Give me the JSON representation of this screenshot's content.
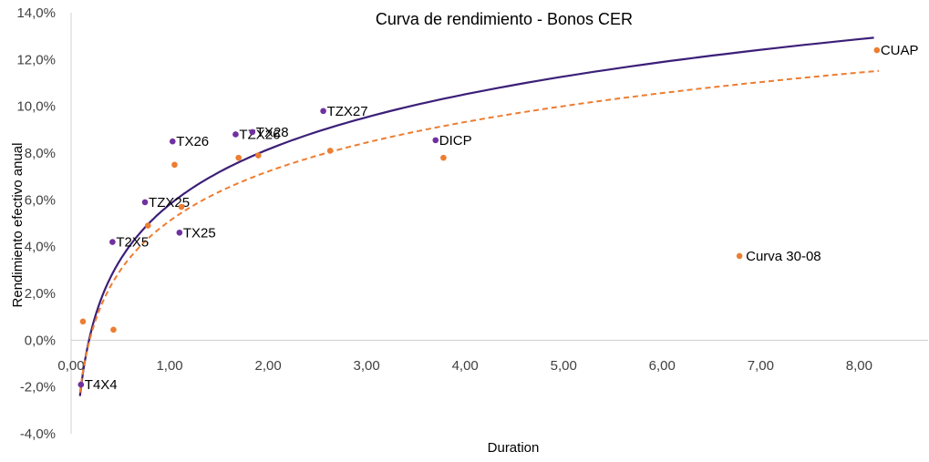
{
  "chart_data": {
    "type": "scatter",
    "title": "Curva de rendimiento - Bonos CER",
    "xlabel": "Duration",
    "ylabel": "Rendimiento efectivo anual",
    "xlim": [
      0,
      8.7
    ],
    "ylim": [
      -4,
      14
    ],
    "x_ticks": [
      "0,00",
      "1,00",
      "2,00",
      "3,00",
      "4,00",
      "5,00",
      "6,00",
      "7,00",
      "8,00"
    ],
    "y_ticks": [
      "-4,0%",
      "-2,0%",
      "0,0%",
      "2,0%",
      "4,0%",
      "6,0%",
      "8,0%",
      "10,0%",
      "12,0%",
      "14,0%"
    ],
    "grid": false,
    "series": [
      {
        "color": "#7030a0",
        "points": [
          {
            "x": 0.1,
            "y": -1.9,
            "label": "T4X4"
          },
          {
            "x": 0.42,
            "y": 4.2,
            "label": "T2X5"
          },
          {
            "x": 0.75,
            "y": 5.9,
            "label": "TZX25"
          },
          {
            "x": 1.03,
            "y": 8.5,
            "label": "TX26"
          },
          {
            "x": 1.1,
            "y": 4.6,
            "label": "TX25"
          },
          {
            "x": 1.67,
            "y": 8.8,
            "label": "TZX26"
          },
          {
            "x": 1.84,
            "y": 8.9,
            "label": "TX28"
          },
          {
            "x": 2.56,
            "y": 9.8,
            "label": "TZX27"
          },
          {
            "x": 3.7,
            "y": 8.55,
            "label": "DICP"
          }
        ]
      },
      {
        "color": "#ed7d31",
        "points": [
          {
            "x": 0.12,
            "y": 0.8
          },
          {
            "x": 0.43,
            "y": 0.45
          },
          {
            "x": 0.78,
            "y": 4.9
          },
          {
            "x": 1.05,
            "y": 7.5
          },
          {
            "x": 1.12,
            "y": 5.7
          },
          {
            "x": 1.7,
            "y": 7.8
          },
          {
            "x": 1.9,
            "y": 7.9
          },
          {
            "x": 2.63,
            "y": 8.1
          },
          {
            "x": 3.78,
            "y": 7.8
          },
          {
            "x": 8.18,
            "y": 12.4,
            "label": "CUAP"
          }
        ]
      }
    ],
    "trendlines": [
      {
        "type": "logarithmic",
        "color": "#3c1f78",
        "style": "solid",
        "a": 5.8,
        "b": 3.4,
        "x_from": 0.09,
        "x_to": 8.15
      },
      {
        "type": "logarithmic",
        "color": "#ed7d31",
        "style": "dashed",
        "a": 5.1,
        "b": 3.05,
        "x_from": 0.09,
        "x_to": 8.2
      }
    ],
    "annotation": {
      "text": "Curva 30-08",
      "x": 6.85,
      "y": 3.6,
      "color": "#ed7d31"
    }
  }
}
